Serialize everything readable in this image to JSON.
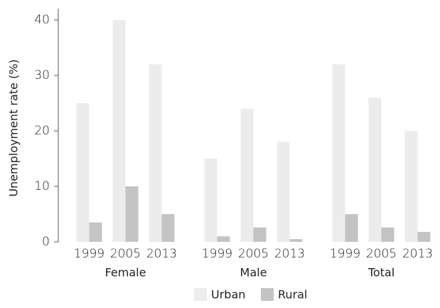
{
  "chart_data": {
    "type": "bar",
    "y_label": "Unemployment rate (%)",
    "groups": [
      "Female",
      "Male",
      "Total"
    ],
    "categories": [
      "1999",
      "2005",
      "2013",
      "1999",
      "2005",
      "2013",
      "1999",
      "2005",
      "2013"
    ],
    "series": [
      {
        "name": "Urban",
        "color": "#ececec",
        "values": [
          25,
          40,
          32,
          15,
          24,
          18,
          32,
          26,
          20
        ]
      },
      {
        "name": "Rural",
        "color": "#c4c4c4",
        "values": [
          3.5,
          10,
          5,
          1,
          2.6,
          0.5,
          5,
          2.6,
          1.8
        ]
      }
    ],
    "ylim": [
      0,
      42
    ],
    "yticks": [
      0,
      10,
      20,
      30,
      40
    ],
    "grid": false
  }
}
